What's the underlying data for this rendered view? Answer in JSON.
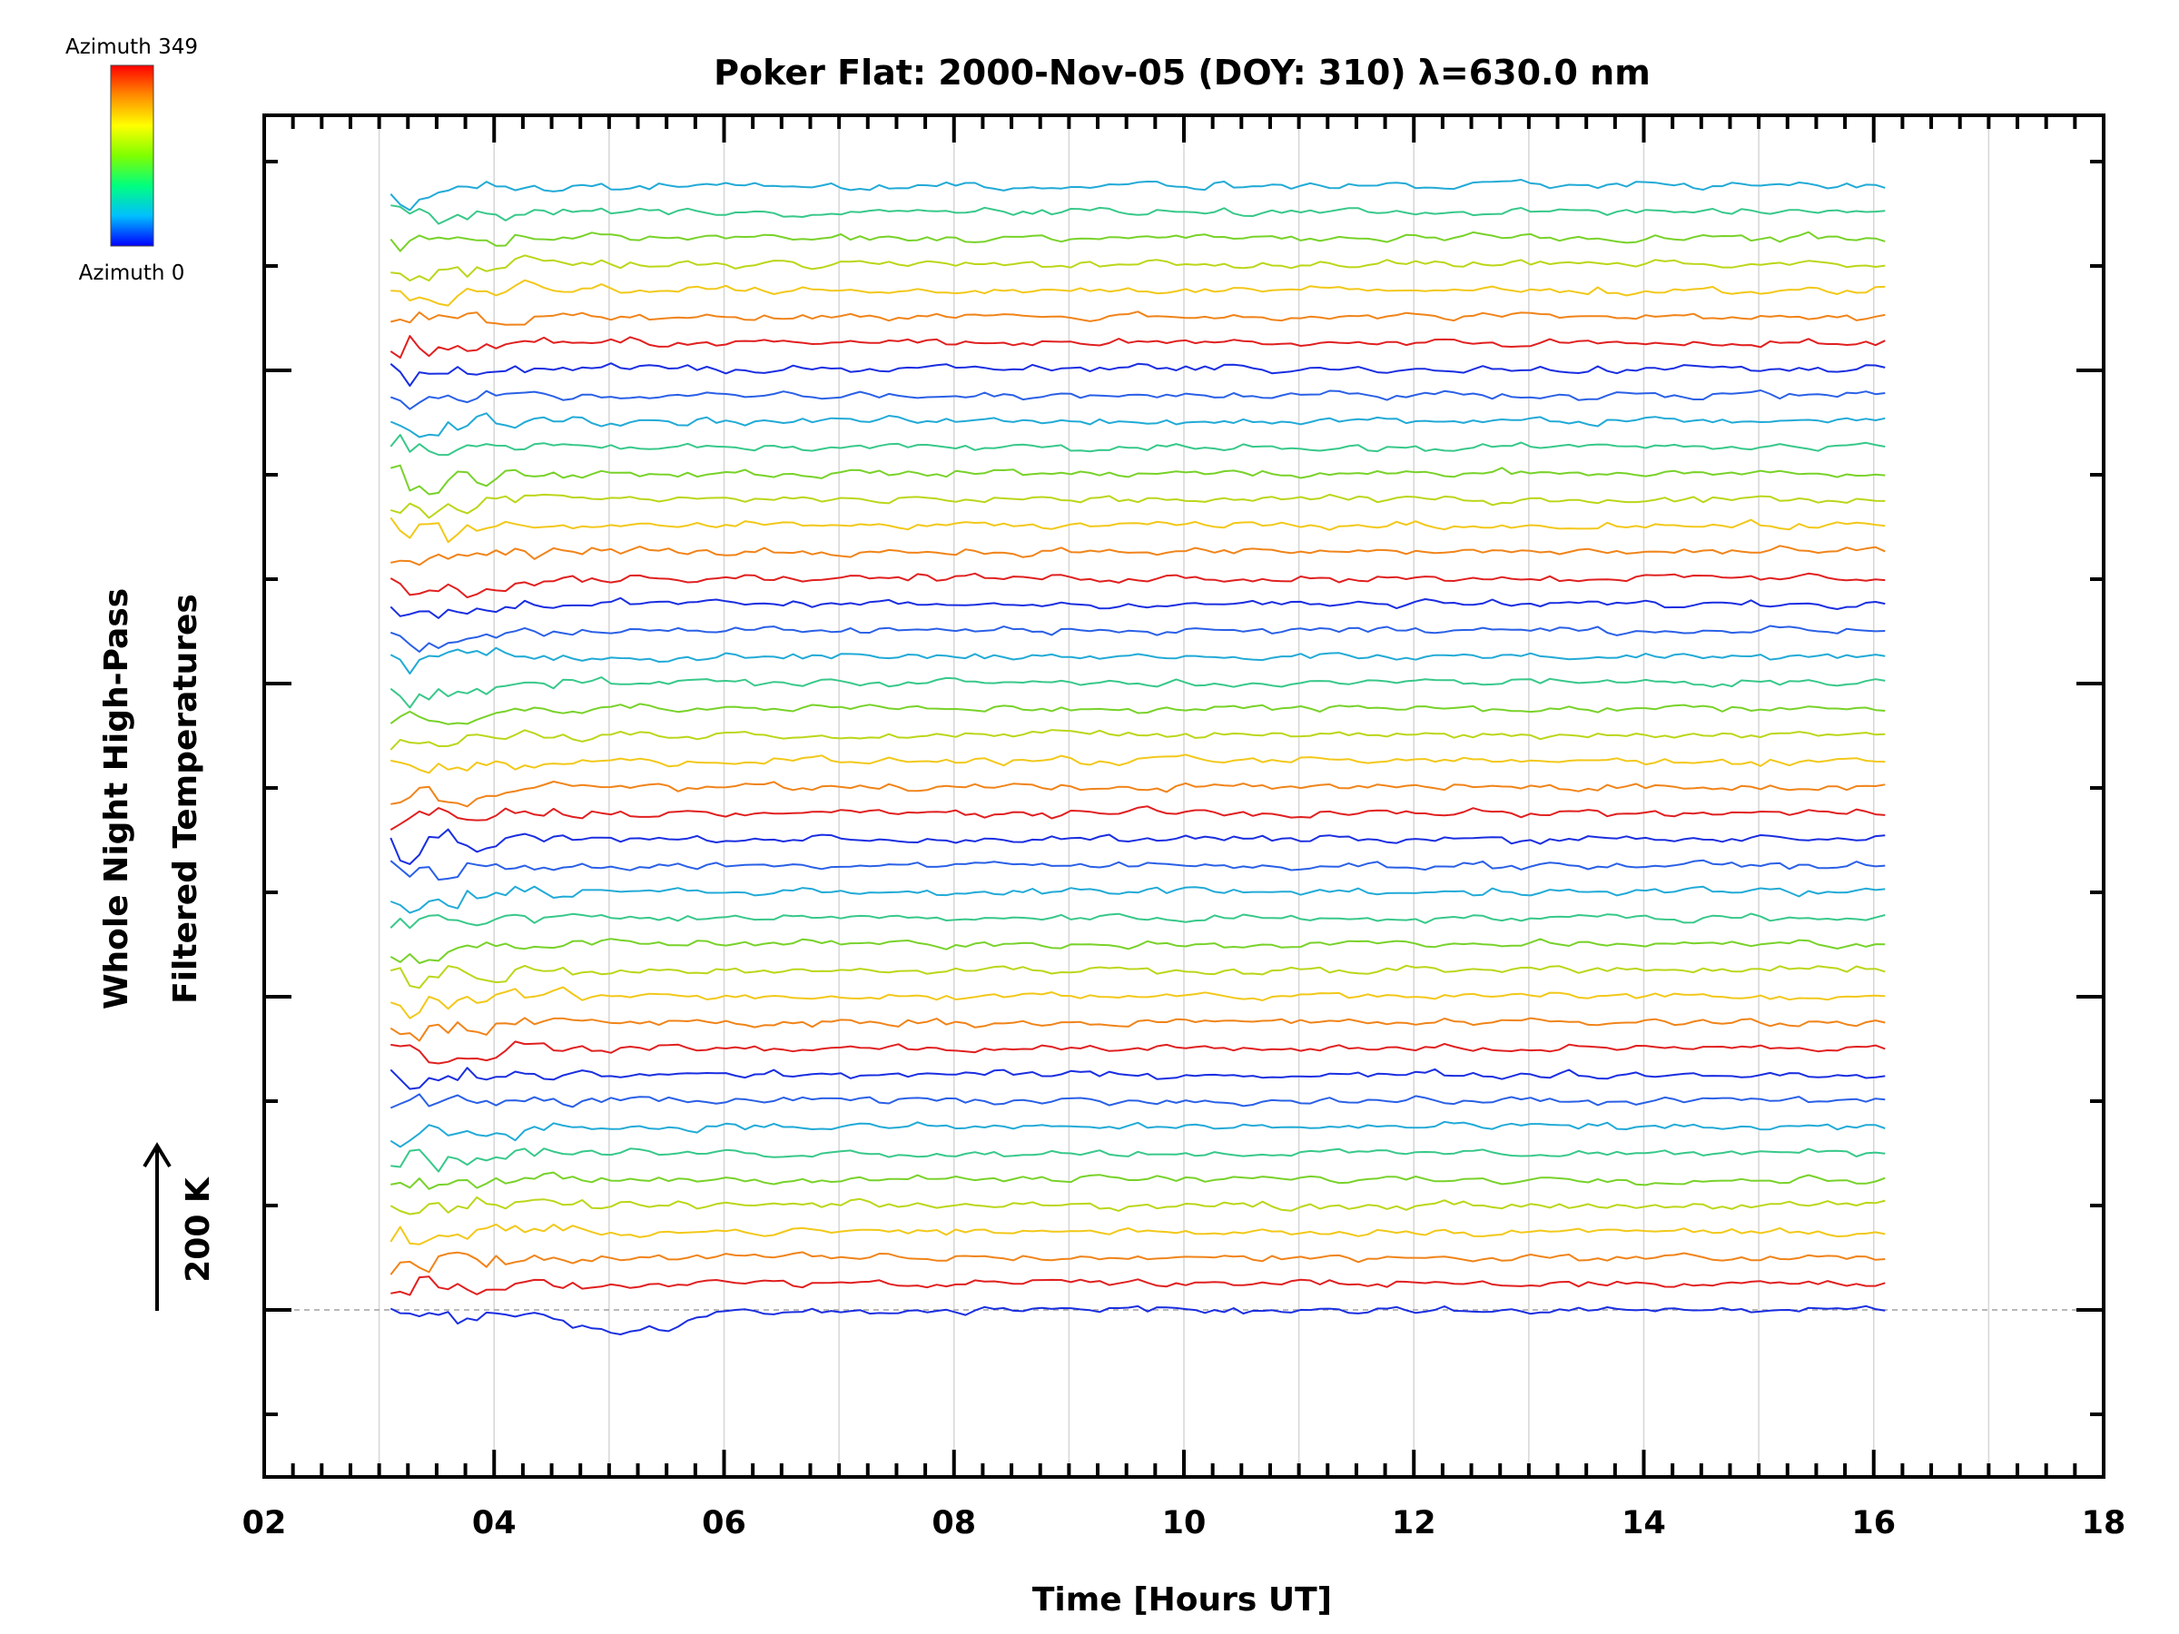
{
  "chart_data": {
    "type": "line",
    "title": "Poker Flat: 2000-Nov-05 (DOY: 310) λ=630.0 nm",
    "xlabel": "Time [Hours UT]",
    "ylabel_line1": "Whole Night High-Pass",
    "ylabel_line2": "Filtered Temperatures",
    "scale_label": "200 K",
    "xlim": [
      2,
      18
    ],
    "x_ticks": [
      "02",
      "04",
      "06",
      "08",
      "10",
      "12",
      "14",
      "16",
      "18"
    ],
    "grid": "vertical dotted at every hour",
    "baseline": "dashed horizontal line at lowest trace offset",
    "traces": {
      "count": 44,
      "x_start": 3.1,
      "x_end": 16.15,
      "sample_step_hours": 0.08333,
      "offset_spacing_K": 46,
      "color_cycle_hex": [
        "#1a2ee0",
        "#e02020",
        "#f0841a",
        "#f2c81a",
        "#bcd61a",
        "#78d22a",
        "#38c88a",
        "#22aad6",
        "#2a60e6"
      ]
    },
    "colorbar": {
      "top_label": "Azimuth 349",
      "bottom_label": "Azimuth 0",
      "colors": [
        "#ff0000",
        "#ff8c00",
        "#ffff00",
        "#7fff00",
        "#00ff7f",
        "#00bfff",
        "#0000ff"
      ]
    }
  }
}
